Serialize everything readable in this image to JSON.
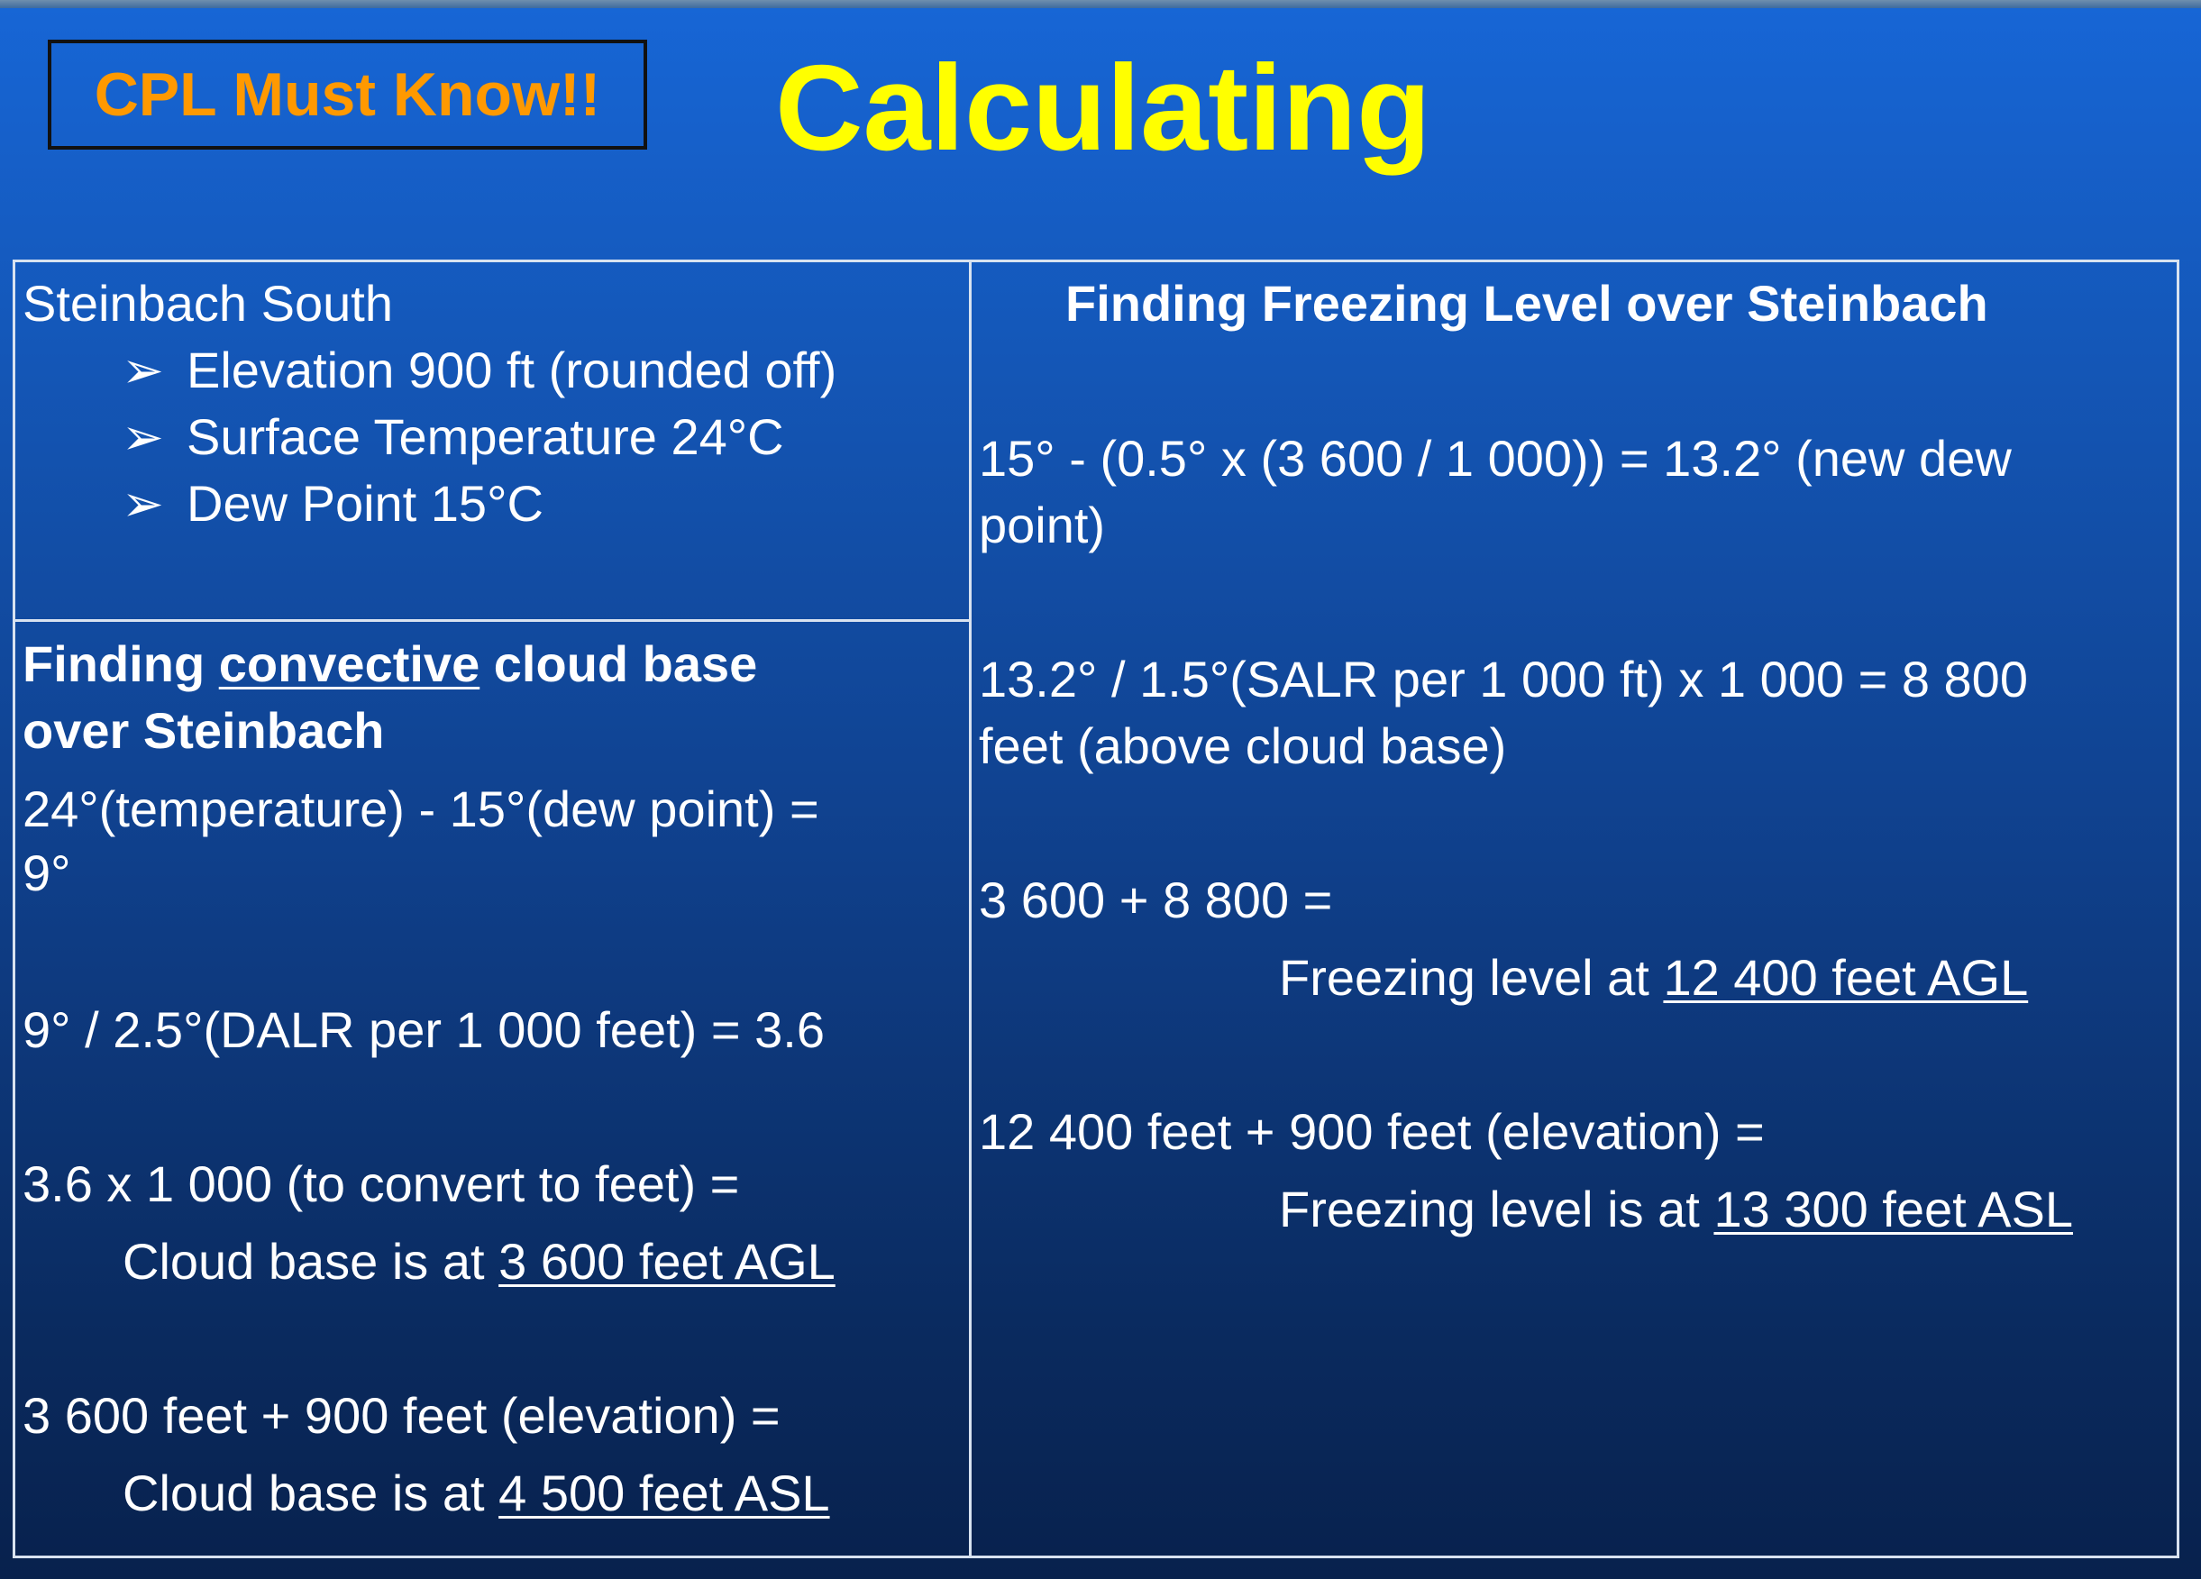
{
  "badge": {
    "label": "CPL Must Know!!"
  },
  "title": "Calculating",
  "left_top": {
    "heading": "Steinbach South",
    "bullet_glyph": "➢",
    "bullets": [
      "Elevation 900 ft (rounded off)",
      "Surface Temperature 24°C",
      "Dew Point 15°C"
    ]
  },
  "left_bottom": {
    "heading_prefix": "Finding ",
    "heading_underlined": "convective",
    "heading_suffix": " cloud base",
    "heading_line2": "over Steinbach",
    "calc1_line1": "24°(temperature) - 15°(dew point) =",
    "calc1_line2": "9°",
    "calc2": "9° / 2.5°(DALR per 1 000 feet) = 3.6",
    "calc3_line1": "3.6 x 1 000 (to convert to feet) =",
    "calc3_result_prefix": "Cloud base is at ",
    "calc3_result_value": "3 600 feet AGL",
    "calc4_line1": "3 600 feet + 900 feet (elevation) =",
    "calc4_result_prefix": "Cloud base is at ",
    "calc4_result_value": "4 500 feet ASL"
  },
  "right": {
    "heading": "Finding Freezing Level over Steinbach",
    "calc1_line1": "15° - (0.5° x (3 600 / 1 000)) = 13.2° (new dew",
    "calc1_line2": "point)",
    "calc2_line1": "13.2° / 1.5°(SALR per 1 000 ft) x 1 000 = 8 800",
    "calc2_line2": "feet (above cloud base)",
    "calc3_line1": "3 600 + 8 800 =",
    "calc3_result_prefix": "Freezing level at ",
    "calc3_result_value": "12 400 feet AGL",
    "calc4_line1": "12 400 feet + 900 feet (elevation) =",
    "calc4_result_prefix": "Freezing level is at ",
    "calc4_result_value": "13 300 feet ASL"
  }
}
